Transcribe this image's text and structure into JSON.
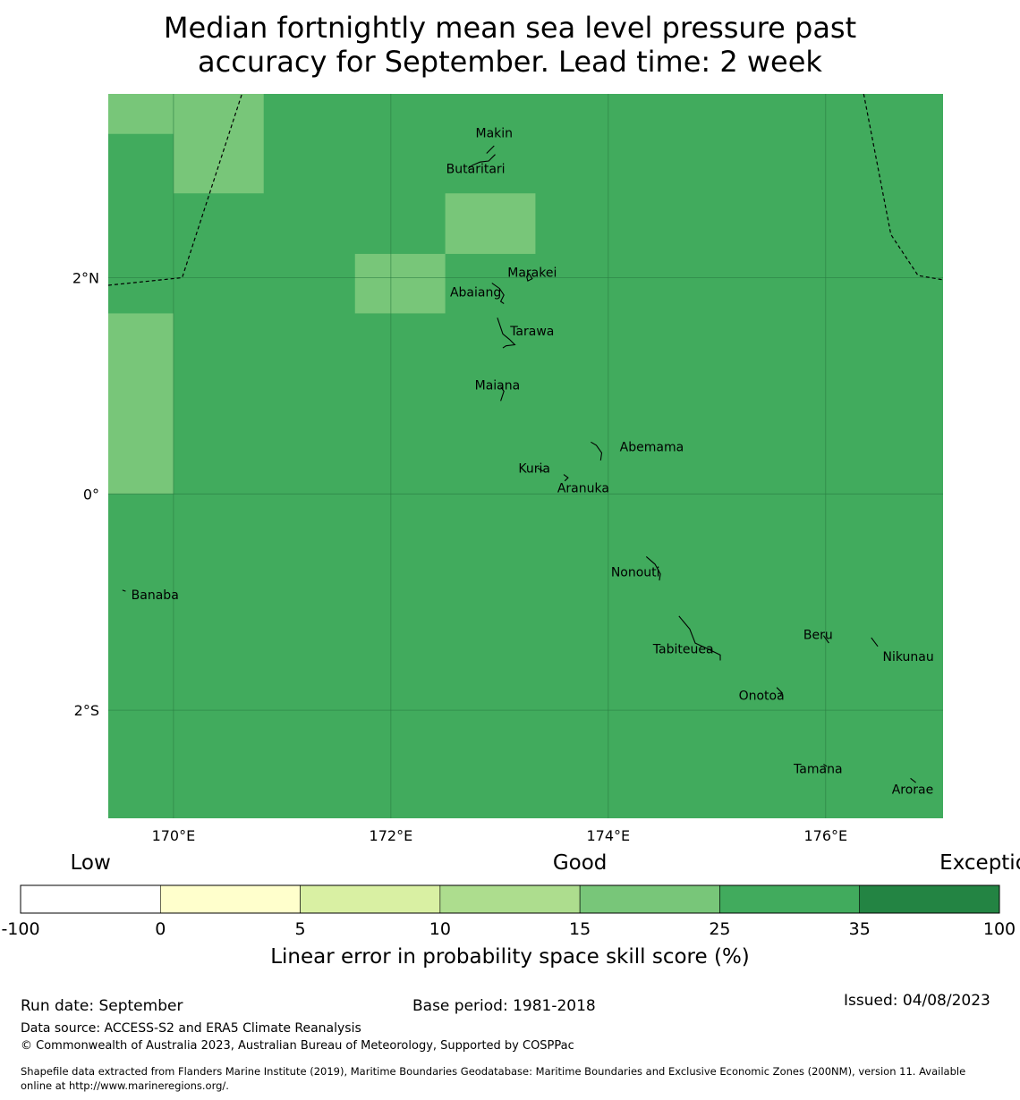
{
  "title": {
    "line1": "Median fortnightly mean sea level pressure past",
    "line2": "accuracy for September. Lead time: 2 week"
  },
  "map": {
    "base_color": "#41ab5d",
    "light_color": "#78c679",
    "grid_color": "#2a7a42",
    "land_color": "#000000",
    "lon_range": [
      169.4,
      177.08
    ],
    "lat_range": [
      -3.0,
      3.7
    ],
    "lon_ticks": [
      {
        "value": 170,
        "label": "170°E"
      },
      {
        "value": 172,
        "label": "172°E"
      },
      {
        "value": 174,
        "label": "174°E"
      },
      {
        "value": 176,
        "label": "176°E"
      }
    ],
    "lat_ticks": [
      {
        "value": 2,
        "label": "2°N"
      },
      {
        "value": 0,
        "label": "0°"
      },
      {
        "value": -2,
        "label": "2°S"
      }
    ],
    "cells": [
      {
        "lon0": 169.4,
        "lon1": 170.0,
        "lat0": 3.33,
        "lat1": 3.7,
        "category": "15-25"
      },
      {
        "lon0": 170.0,
        "lon1": 170.83,
        "lat0": 2.78,
        "lat1": 3.7,
        "category": "15-25"
      },
      {
        "lon0": 172.5,
        "lon1": 173.33,
        "lat0": 2.22,
        "lat1": 2.78,
        "category": "15-25"
      },
      {
        "lon0": 171.67,
        "lon1": 172.5,
        "lat0": 1.67,
        "lat1": 2.22,
        "category": "15-25"
      },
      {
        "lon0": 169.4,
        "lon1": 170.0,
        "lat0": 0.0,
        "lat1": 1.67,
        "category": "15-25"
      }
    ],
    "boundaries": [
      [
        [
          169.4,
          1.93
        ],
        [
          170.08,
          2.0
        ],
        [
          170.63,
          3.7
        ]
      ],
      [
        [
          176.35,
          3.7
        ],
        [
          176.6,
          2.4
        ],
        [
          176.85,
          2.02
        ],
        [
          177.08,
          1.98
        ]
      ]
    ],
    "islands": [
      {
        "name": "Makin",
        "lon": 172.95,
        "lat": 3.33,
        "shape": [
          [
            172.95,
            3.22
          ],
          [
            172.88,
            3.15
          ]
        ]
      },
      {
        "name": "Butaritari",
        "lon": 172.78,
        "lat": 3.0,
        "shape": [
          [
            172.96,
            3.14
          ],
          [
            172.9,
            3.08
          ],
          [
            172.82,
            3.07
          ],
          [
            172.75,
            3.04
          ],
          [
            172.71,
            3.01
          ]
        ]
      },
      {
        "name": "Marakei",
        "lon": 173.3,
        "lat": 2.04,
        "shape": [
          [
            173.27,
            2.04
          ],
          [
            173.3,
            1.99
          ],
          [
            173.26,
            1.97
          ],
          [
            173.25,
            2.01
          ],
          [
            173.27,
            2.04
          ]
        ]
      },
      {
        "name": "Abaiang",
        "lon": 172.78,
        "lat": 1.86,
        "shape": [
          [
            172.93,
            1.95
          ],
          [
            173.0,
            1.9
          ],
          [
            173.04,
            1.84
          ],
          [
            173.01,
            1.78
          ],
          [
            173.04,
            1.76
          ]
        ]
      },
      {
        "name": "Tarawa",
        "lon": 173.3,
        "lat": 1.5,
        "shape": [
          [
            172.98,
            1.63
          ],
          [
            173.03,
            1.48
          ],
          [
            173.09,
            1.43
          ],
          [
            173.14,
            1.38
          ],
          [
            173.06,
            1.37
          ],
          [
            173.03,
            1.35
          ]
        ]
      },
      {
        "name": "Maiana",
        "lon": 172.98,
        "lat": 1.0,
        "shape": [
          [
            173.01,
            0.99
          ],
          [
            173.04,
            0.95
          ],
          [
            173.01,
            0.86
          ]
        ]
      },
      {
        "name": "Abemama",
        "lon": 174.4,
        "lat": 0.43,
        "shape": [
          [
            173.84,
            0.48
          ],
          [
            173.89,
            0.45
          ],
          [
            173.94,
            0.38
          ],
          [
            173.93,
            0.31
          ]
        ]
      },
      {
        "name": "Kuria",
        "lon": 173.32,
        "lat": 0.23,
        "shape": [
          [
            173.35,
            0.24
          ],
          [
            173.4,
            0.21
          ]
        ]
      },
      {
        "name": "Aranuka",
        "lon": 173.77,
        "lat": 0.05,
        "shape": [
          [
            173.59,
            0.18
          ],
          [
            173.63,
            0.15
          ],
          [
            173.6,
            0.12
          ]
        ]
      },
      {
        "name": "Nonouti",
        "lon": 174.25,
        "lat": -0.73,
        "shape": [
          [
            174.35,
            -0.58
          ],
          [
            174.43,
            -0.65
          ],
          [
            174.48,
            -0.74
          ],
          [
            174.47,
            -0.8
          ]
        ]
      },
      {
        "name": "Tabiteuea",
        "lon": 174.69,
        "lat": -1.44,
        "shape": [
          [
            174.65,
            -1.13
          ],
          [
            174.75,
            -1.25
          ],
          [
            174.8,
            -1.38
          ],
          [
            174.93,
            -1.44
          ],
          [
            175.03,
            -1.49
          ],
          [
            175.03,
            -1.54
          ]
        ]
      },
      {
        "name": "Beru",
        "lon": 175.93,
        "lat": -1.31,
        "shape": [
          [
            175.98,
            -1.31
          ],
          [
            176.03,
            -1.38
          ]
        ]
      },
      {
        "name": "Nikunau",
        "lon": 176.76,
        "lat": -1.51,
        "shape": [
          [
            176.42,
            -1.33
          ],
          [
            176.48,
            -1.41
          ]
        ]
      },
      {
        "name": "Onotoa",
        "lon": 175.41,
        "lat": -1.87,
        "shape": [
          [
            175.55,
            -1.79
          ],
          [
            175.6,
            -1.84
          ],
          [
            175.58,
            -1.87
          ]
        ]
      },
      {
        "name": "Tamana",
        "lon": 175.93,
        "lat": -2.55,
        "shape": [
          [
            175.98,
            -2.5
          ],
          [
            176.01,
            -2.52
          ]
        ]
      },
      {
        "name": "Arorae",
        "lon": 176.8,
        "lat": -2.74,
        "shape": [
          [
            176.78,
            -2.63
          ],
          [
            176.83,
            -2.67
          ]
        ]
      },
      {
        "name": "Banaba",
        "lon": 169.83,
        "lat": -0.94,
        "shape": [
          [
            169.53,
            -0.89
          ],
          [
            169.56,
            -0.9
          ]
        ]
      }
    ]
  },
  "colorbar": {
    "categories": [
      {
        "label": "Low",
        "tick": 0
      },
      {
        "label": "Good",
        "tick": 3.5
      },
      {
        "label": "Exceptional",
        "tick": 6.5
      }
    ],
    "segments": [
      {
        "from": "-100",
        "to": "0",
        "color": "#ffffff"
      },
      {
        "from": "0",
        "to": "5",
        "color": "#ffffcc"
      },
      {
        "from": "5",
        "to": "10",
        "color": "#d9f0a3"
      },
      {
        "from": "10",
        "to": "15",
        "color": "#addd8e"
      },
      {
        "from": "15",
        "to": "25",
        "color": "#78c679"
      },
      {
        "from": "25",
        "to": "35",
        "color": "#41ab5d"
      },
      {
        "from": "35",
        "to": "100",
        "color": "#238443"
      }
    ],
    "ticks": [
      "-100",
      "0",
      "5",
      "10",
      "15",
      "25",
      "35",
      "100"
    ],
    "label": "Linear error in probability space skill score (%)"
  },
  "footer": {
    "run_date": "Run date: September",
    "base_period": "Base period: 1981-2018",
    "issued": "Issued: 04/08/2023",
    "data_source": "Data source: ACCESS-S2 and ERA5 Climate Reanalysis",
    "copyright": "© Commonwealth of Australia 2023, Australian Bureau of Meteorology, Supported by COSPPac",
    "shapefile_line1": "Shapefile data extracted from Flanders Marine Institute (2019), Maritime Boundaries Geodatabase: Maritime Boundaries and Exclusive Economic Zones (200NM), version 11. Available",
    "shapefile_line2": "online at http://www.marineregions.org/."
  }
}
